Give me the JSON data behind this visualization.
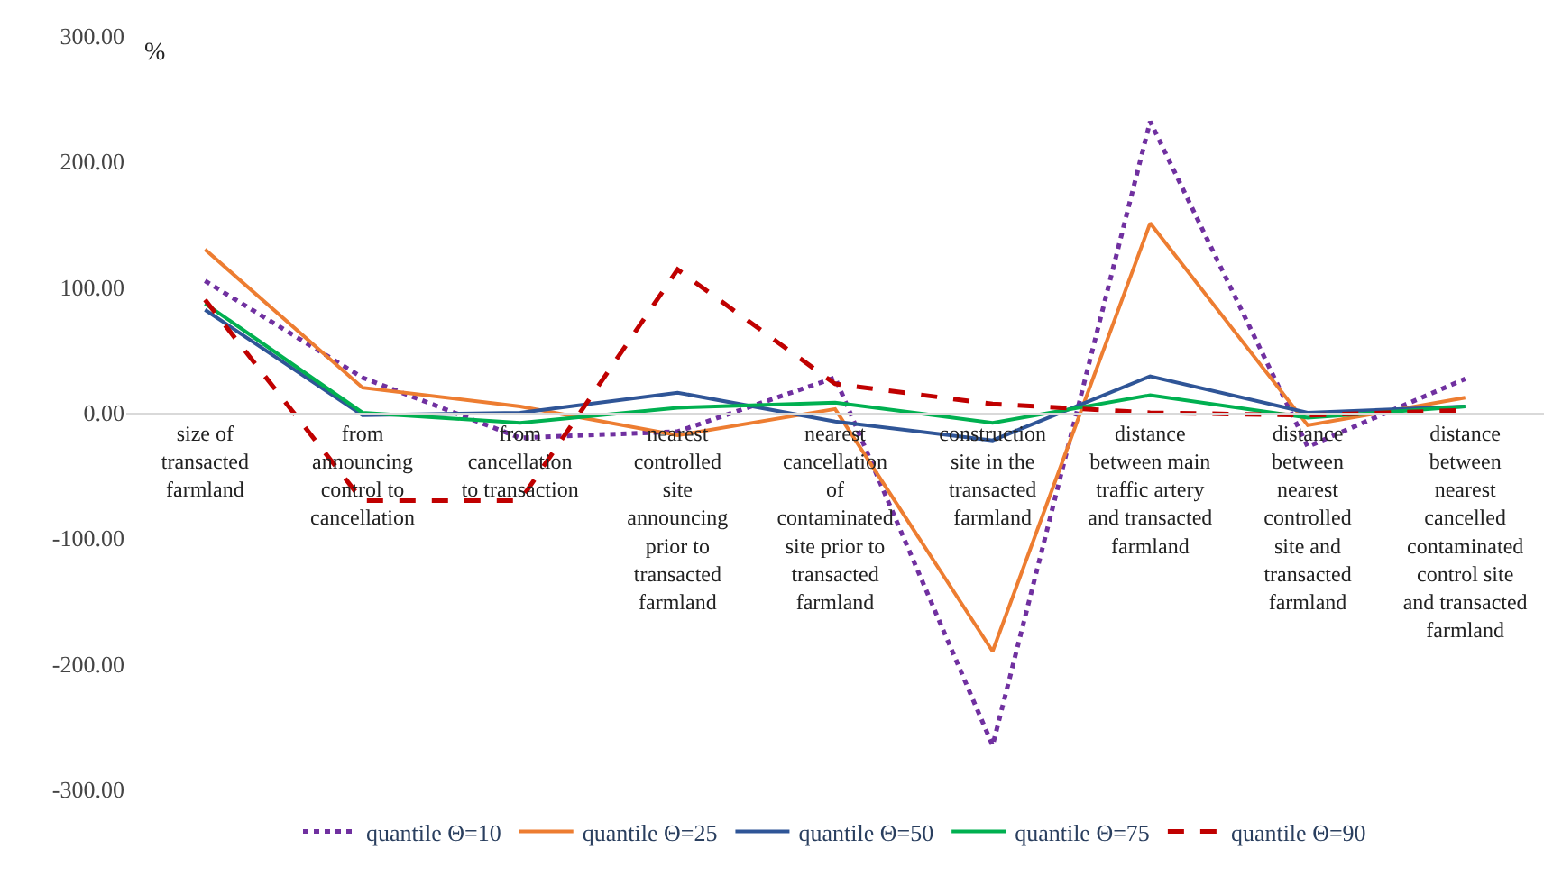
{
  "chart_data": {
    "type": "line",
    "ylabel": "%",
    "categories": [
      "size of transacted farmland",
      "from announcing control to cancellation",
      "from cancellation to transaction",
      "nearest controlled site announcing prior to transacted farmland",
      "nearest cancellation of contaminated site prior to transacted farmland",
      "construction site in the transacted farmland",
      "distance between main traffic artery and transacted farmland",
      "distance between nearest controlled site and transacted farmland",
      "distance between nearest cancelled contaminated control site and transacted farmland"
    ],
    "series": [
      {
        "name": "quantile Θ=10",
        "color": "#7030a0",
        "line_style": "dotted",
        "values": [
          105,
          28,
          -20,
          -15,
          28,
          -265,
          232,
          -27,
          27
        ]
      },
      {
        "name": "quantile Θ=25",
        "color": "#ed7d31",
        "line_style": "solid",
        "values": [
          130,
          20,
          5,
          -18,
          3,
          -190,
          151,
          -10,
          12
        ]
      },
      {
        "name": "quantile Θ=50",
        "color": "#2f5597",
        "line_style": "solid",
        "values": [
          82,
          -2,
          0,
          16,
          -7,
          -22,
          29,
          0,
          5
        ]
      },
      {
        "name": "quantile Θ=75",
        "color": "#00b050",
        "line_style": "solid",
        "values": [
          87,
          0,
          -8,
          4,
          8,
          -8,
          14,
          -4,
          5
        ]
      },
      {
        "name": "quantile Θ=90",
        "color": "#c00000",
        "line_style": "dashed",
        "values": [
          90,
          -70,
          -70,
          114,
          23,
          7,
          0,
          -2,
          2
        ]
      }
    ],
    "ylim": [
      -300,
      300
    ],
    "yticks": [
      {
        "value": 300,
        "label": "300.00"
      },
      {
        "value": 200,
        "label": "200.00"
      },
      {
        "value": 100,
        "label": "100.00"
      },
      {
        "value": 0,
        "label": "0.00"
      },
      {
        "value": -100,
        "label": "-100.00"
      },
      {
        "value": -200,
        "label": "-200.00"
      },
      {
        "value": -300,
        "label": "-300.00"
      }
    ],
    "legend": "bottom",
    "marker": "none"
  }
}
